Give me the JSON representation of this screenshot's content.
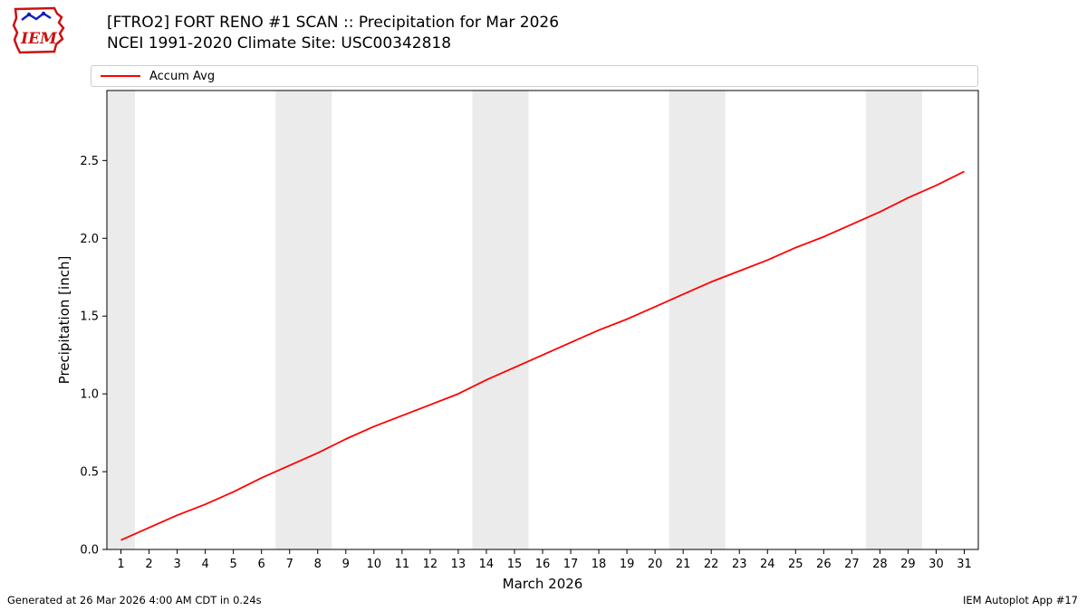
{
  "header": {
    "title_line1": "[FTRO2] FORT RENO #1 SCAN :: Precipitation for Mar 2026",
    "title_line2": "NCEI 1991-2020 Climate Site: USC00342818",
    "logo_text": "IEM"
  },
  "legend": {
    "items": [
      {
        "label": "Accum Avg",
        "color": "#ff0000"
      }
    ]
  },
  "footer": {
    "left": "Generated at 26 Mar 2026 4:00 AM CDT in 0.24s",
    "right": "IEM Autoplot App #17"
  },
  "chart_data": {
    "type": "line",
    "title": "[FTRO2] FORT RENO #1 SCAN :: Precipitation for Mar 2026",
    "subtitle": "NCEI 1991-2020 Climate Site: USC00342818",
    "xlabel": "March 2026",
    "ylabel": "Precipitation [inch]",
    "xlim": [
      0.5,
      31.5
    ],
    "ylim": [
      0,
      2.95
    ],
    "yticks": [
      0.0,
      0.5,
      1.0,
      1.5,
      2.0,
      2.5
    ],
    "x": [
      1,
      2,
      3,
      4,
      5,
      6,
      7,
      8,
      9,
      10,
      11,
      12,
      13,
      14,
      15,
      16,
      17,
      18,
      19,
      20,
      21,
      22,
      23,
      24,
      25,
      26,
      27,
      28,
      29,
      30,
      31
    ],
    "series": [
      {
        "name": "Accum Avg",
        "color": "#ff0000",
        "values": [
          0.06,
          0.14,
          0.22,
          0.29,
          0.37,
          0.46,
          0.54,
          0.62,
          0.71,
          0.79,
          0.86,
          0.93,
          1.0,
          1.09,
          1.17,
          1.25,
          1.33,
          1.41,
          1.48,
          1.56,
          1.64,
          1.72,
          1.79,
          1.86,
          1.94,
          2.01,
          2.09,
          2.17,
          2.26,
          2.34,
          2.43
        ]
      }
    ],
    "weekend_bands": [
      [
        0.5,
        1.5
      ],
      [
        6.5,
        8.5
      ],
      [
        13.5,
        15.5
      ],
      [
        20.5,
        22.5
      ],
      [
        27.5,
        29.5
      ]
    ],
    "band_color": "#ebebeb",
    "grid": false,
    "legend_position": "top"
  }
}
